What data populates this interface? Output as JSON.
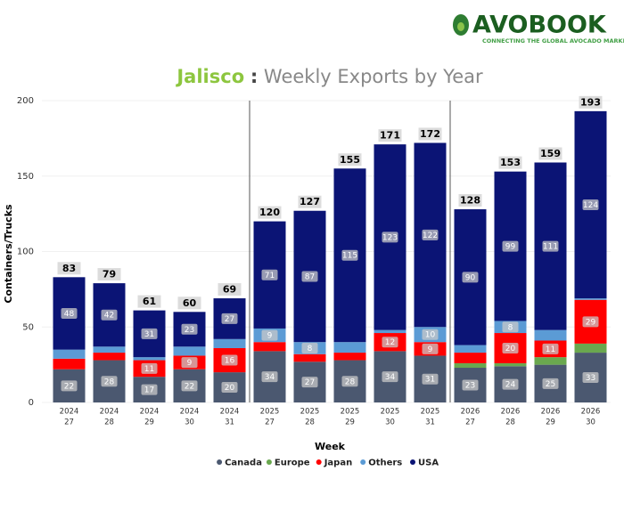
{
  "logo": {
    "name": "AVOBOOK",
    "tagline": "CONNECTING THE GLOBAL AVOCADO MARKET"
  },
  "chart_data": {
    "type": "stacked_bar",
    "title_place": "Jalisco",
    "title_separator": ":",
    "title": "Weekly Exports by Year",
    "y_label": "Containers/Trucks",
    "x_label": "Week",
    "categories": [
      [
        "2024",
        "27"
      ],
      [
        "2024",
        "28"
      ],
      [
        "2024",
        "29"
      ],
      [
        "2024",
        "30"
      ],
      [
        "2024",
        "31"
      ],
      [
        "2025",
        "27"
      ],
      [
        "2025",
        "28"
      ],
      [
        "2025",
        "29"
      ],
      [
        "2025",
        "30"
      ],
      [
        "2025",
        "31"
      ],
      [
        "2026",
        "27"
      ],
      [
        "2026",
        "28"
      ],
      [
        "2026",
        "29"
      ],
      [
        "2026",
        "30"
      ]
    ],
    "series": [
      {
        "name": "Canada",
        "color": "#4b5870",
        "values": [
          22,
          28,
          17,
          22,
          20,
          34,
          27,
          28,
          34,
          31,
          23,
          24,
          25,
          33
        ]
      },
      {
        "name": "Europe",
        "color": "#6aa84f",
        "values": [
          0,
          0,
          0,
          0,
          0,
          0,
          0,
          0,
          0,
          0,
          3,
          2,
          5,
          6
        ]
      },
      {
        "name": "Japan",
        "color": "#ff0000",
        "values": [
          7,
          5,
          11,
          9,
          16,
          6,
          5,
          5,
          12,
          9,
          7,
          20,
          11,
          29
        ]
      },
      {
        "name": "Others",
        "color": "#5b9bd5",
        "values": [
          6,
          4,
          2,
          6,
          6,
          9,
          8,
          7,
          2,
          10,
          5,
          8,
          7,
          1
        ]
      },
      {
        "name": "USA",
        "color": "#0b1475",
        "values": [
          48,
          42,
          31,
          23,
          27,
          71,
          87,
          115,
          123,
          122,
          90,
          99,
          111,
          124
        ]
      }
    ],
    "totals": [
      83,
      79,
      61,
      60,
      69,
      120,
      127,
      155,
      171,
      172,
      128,
      153,
      159,
      193
    ],
    "data_label_min": 8,
    "ylim": [
      0,
      200
    ],
    "yticks": [
      0,
      50,
      100,
      150,
      200
    ],
    "grid": true
  }
}
